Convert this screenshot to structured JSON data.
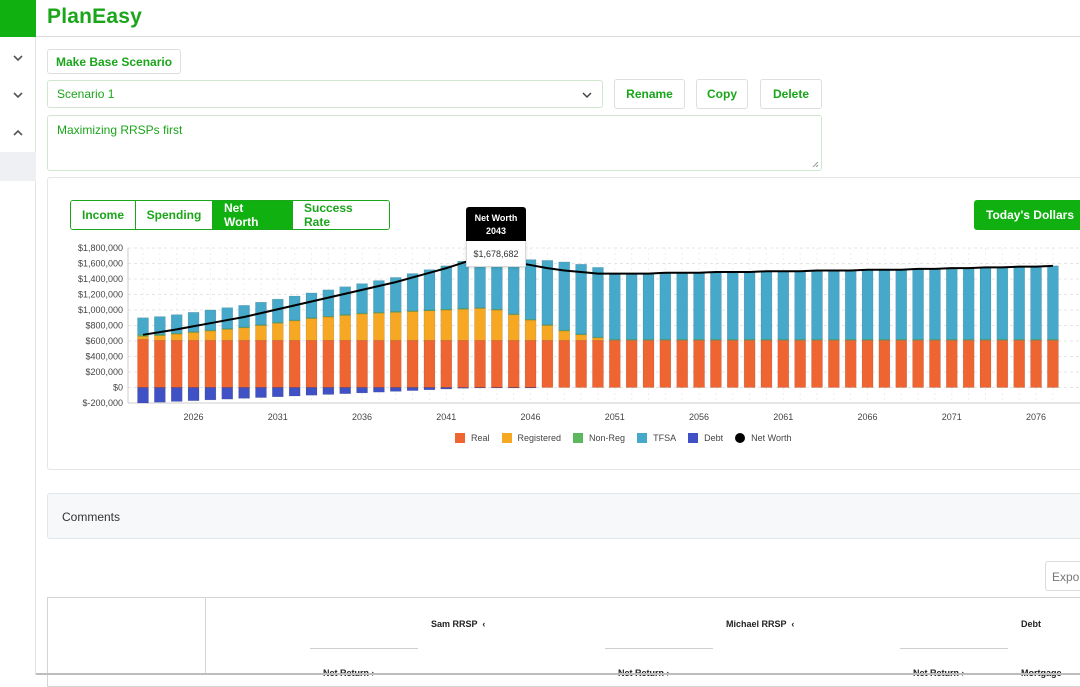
{
  "app": {
    "title": "PlanEasy"
  },
  "scenario": {
    "make_base_label": "Make Base Scenario",
    "selected": "Scenario 1",
    "rename_label": "Rename",
    "copy_label": "Copy",
    "delete_label": "Delete",
    "description": "Maximizing RRSPs first"
  },
  "chart_tabs": [
    "Income",
    "Spending",
    "Net Worth",
    "Success Rate"
  ],
  "active_tab": "Net Worth",
  "dollars_toggle": "Today's Dollars",
  "tooltip": {
    "title": "Net Worth",
    "year": "2043",
    "value": "$1,678,682"
  },
  "legend": [
    "Real",
    "Registered",
    "Non-Reg",
    "TFSA",
    "Debt",
    "Net Worth"
  ],
  "comments": {
    "title": "Comments"
  },
  "export_label": "Expor",
  "table": {
    "headers": [
      {
        "label": "Sam RRSP",
        "sub": "Net Return"
      },
      {
        "label": "Michael RRSP",
        "sub": "Net Return"
      },
      {
        "label": "Debt",
        "sub": "Net Return",
        "sub2": "Mortgage"
      }
    ]
  },
  "chart_data": {
    "type": "bar",
    "stacked": true,
    "title": "",
    "xlabel": "",
    "ylabel": "",
    "ylim": [
      -200000,
      1800000
    ],
    "yticks": [
      "$1,800,000",
      "$1,600,000",
      "$1,400,000",
      "$1,200,000",
      "$1,000,000",
      "$800,000",
      "$600,000",
      "$400,000",
      "$200,000",
      "$0",
      "$-200,000"
    ],
    "x_tick_labels": [
      "2026",
      "2031",
      "2036",
      "2041",
      "2046",
      "2051",
      "2056",
      "2061",
      "2066",
      "2071",
      "2076"
    ],
    "x": [
      2023,
      2024,
      2025,
      2026,
      2027,
      2028,
      2029,
      2030,
      2031,
      2032,
      2033,
      2034,
      2035,
      2036,
      2037,
      2038,
      2039,
      2040,
      2041,
      2042,
      2043,
      2044,
      2045,
      2046,
      2047,
      2048,
      2049,
      2050,
      2051,
      2052,
      2053,
      2054,
      2055,
      2056,
      2057,
      2058,
      2059,
      2060,
      2061,
      2062,
      2063,
      2064,
      2065,
      2066,
      2067,
      2068,
      2069,
      2070,
      2071,
      2072,
      2073,
      2074,
      2075,
      2076,
      2077
    ],
    "series": [
      {
        "name": "Real",
        "color": "#ee6532",
        "values": [
          620000,
          610000,
          610000,
          610000,
          610000,
          610000,
          610000,
          610000,
          610000,
          610000,
          610000,
          610000,
          610000,
          610000,
          610000,
          610000,
          610000,
          610000,
          610000,
          610000,
          610000,
          610000,
          610000,
          610000,
          610000,
          610000,
          610000,
          610000,
          610000,
          610000,
          610000,
          610000,
          610000,
          610000,
          610000,
          610000,
          610000,
          610000,
          610000,
          610000,
          610000,
          610000,
          610000,
          610000,
          610000,
          610000,
          610000,
          610000,
          610000,
          610000,
          610000,
          610000,
          610000,
          610000,
          610000
        ]
      },
      {
        "name": "Registered",
        "color": "#f6a823",
        "values": [
          40000,
          60000,
          80000,
          100000,
          120000,
          140000,
          160000,
          190000,
          220000,
          250000,
          280000,
          300000,
          320000,
          340000,
          350000,
          360000,
          370000,
          380000,
          390000,
          400000,
          410000,
          390000,
          330000,
          260000,
          190000,
          120000,
          70000,
          30000,
          0,
          0,
          0,
          0,
          0,
          0,
          0,
          0,
          0,
          0,
          0,
          0,
          0,
          0,
          0,
          0,
          0,
          0,
          0,
          0,
          0,
          0,
          0,
          0,
          0,
          0,
          0
        ]
      },
      {
        "name": "Non-Reg",
        "color": "#5cb85c",
        "values": [
          20000,
          15000,
          10000,
          10000,
          10000,
          10000,
          10000,
          10000,
          10000,
          10000,
          10000,
          10000,
          10000,
          10000,
          10000,
          10000,
          10000,
          10000,
          10000,
          10000,
          10000,
          10000,
          10000,
          10000,
          10000,
          10000,
          10000,
          10000,
          10000,
          10000,
          10000,
          10000,
          10000,
          10000,
          10000,
          10000,
          10000,
          10000,
          10000,
          10000,
          10000,
          10000,
          10000,
          10000,
          10000,
          10000,
          10000,
          10000,
          10000,
          10000,
          10000,
          10000,
          10000,
          10000,
          10000
        ]
      },
      {
        "name": "TFSA",
        "color": "#46a9c9",
        "values": [
          220000,
          230000,
          240000,
          250000,
          260000,
          270000,
          280000,
          290000,
          300000,
          310000,
          320000,
          340000,
          360000,
          380000,
          410000,
          440000,
          480000,
          520000,
          560000,
          610000,
          660000,
          670000,
          720000,
          770000,
          830000,
          880000,
          900000,
          900000,
          850000,
          850000,
          850000,
          860000,
          860000,
          860000,
          870000,
          870000,
          870000,
          880000,
          880000,
          880000,
          890000,
          890000,
          890000,
          900000,
          900000,
          900000,
          910000,
          910000,
          920000,
          920000,
          930000,
          930000,
          940000,
          940000,
          950000
        ]
      },
      {
        "name": "Debt",
        "color": "#3f51c4",
        "values": [
          -200000,
          -190000,
          -180000,
          -170000,
          -160000,
          -150000,
          -140000,
          -130000,
          -120000,
          -110000,
          -100000,
          -90000,
          -80000,
          -70000,
          -60000,
          -50000,
          -40000,
          -30000,
          -20000,
          -10000,
          -5000,
          -3000,
          -2000,
          -1000,
          0,
          0,
          0,
          0,
          0,
          0,
          0,
          0,
          0,
          0,
          0,
          0,
          0,
          0,
          0,
          0,
          0,
          0,
          0,
          0,
          0,
          0,
          0,
          0,
          0,
          0,
          0,
          0,
          0,
          0,
          0
        ]
      },
      {
        "name": "Net Worth",
        "color": "#000000",
        "type": "line",
        "values": [
          680000,
          715000,
          750000,
          790000,
          830000,
          870000,
          910000,
          960000,
          1010000,
          1060000,
          1110000,
          1160000,
          1210000,
          1260000,
          1310000,
          1360000,
          1420000,
          1480000,
          1540000,
          1610000,
          1678682,
          1660000,
          1620000,
          1580000,
          1540000,
          1510000,
          1490000,
          1470000,
          1470000,
          1470000,
          1470000,
          1480000,
          1480000,
          1480000,
          1490000,
          1490000,
          1490000,
          1500000,
          1500000,
          1500000,
          1510000,
          1510000,
          1510000,
          1520000,
          1520000,
          1520000,
          1530000,
          1530000,
          1540000,
          1540000,
          1550000,
          1550000,
          1560000,
          1560000,
          1570000
        ]
      }
    ]
  }
}
